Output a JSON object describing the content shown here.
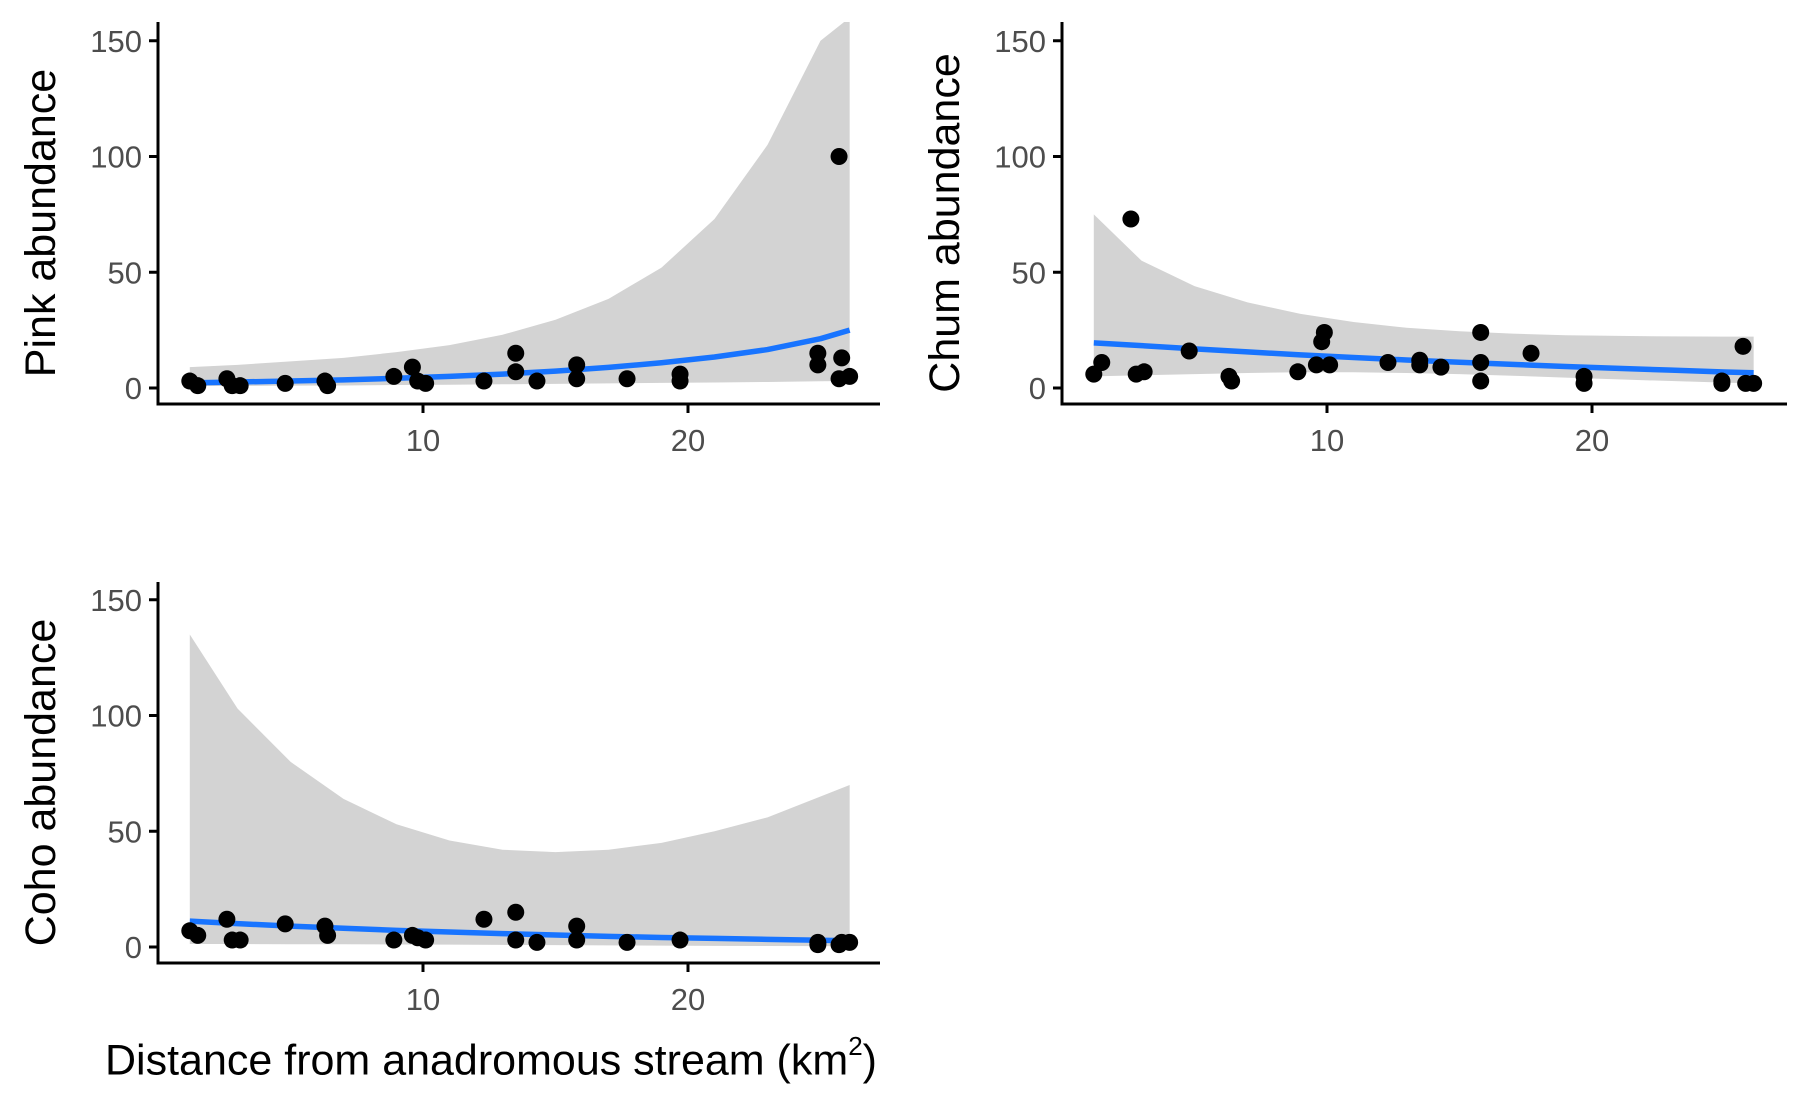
{
  "x_axis_title": {
    "text": "Distance from anadromous stream (km",
    "superscript": "2",
    "suffix": ")"
  },
  "colors": {
    "fit_line": "#1874FF",
    "confidence_band": "#D3D3D3",
    "points": "#000000",
    "axes": "#000000",
    "tick_labels": "#4D4D4D"
  },
  "chart_data": [
    {
      "type": "scatter",
      "panel": "top-left",
      "ylabel": "Pink abundance",
      "xlabel": "",
      "xlim": [
        0.3,
        27.2
      ],
      "ylim": [
        -5,
        157
      ],
      "x_ticks": [
        10,
        20
      ],
      "y_ticks": [
        0,
        50,
        100,
        150
      ],
      "grid": false,
      "legend": "none",
      "points": [
        [
          1.2,
          3
        ],
        [
          1.5,
          1
        ],
        [
          2.6,
          4
        ],
        [
          2.8,
          1
        ],
        [
          3.1,
          1
        ],
        [
          4.8,
          2
        ],
        [
          6.3,
          3
        ],
        [
          6.4,
          1
        ],
        [
          8.9,
          5
        ],
        [
          9.6,
          9
        ],
        [
          9.8,
          3
        ],
        [
          10.1,
          2
        ],
        [
          12.3,
          3
        ],
        [
          13.5,
          15
        ],
        [
          13.5,
          7
        ],
        [
          14.3,
          3
        ],
        [
          15.8,
          4
        ],
        [
          15.8,
          10
        ],
        [
          17.7,
          4
        ],
        [
          19.7,
          3
        ],
        [
          19.7,
          6
        ],
        [
          24.9,
          15
        ],
        [
          24.9,
          10
        ],
        [
          25.7,
          100
        ],
        [
          25.7,
          4
        ],
        [
          25.8,
          13
        ],
        [
          26.1,
          5
        ]
      ],
      "fit": {
        "x": [
          1.2,
          3,
          5,
          7,
          9,
          11,
          13,
          15,
          17,
          19,
          21,
          23,
          25,
          26.1
        ],
        "y": [
          2.2,
          2.6,
          3.0,
          3.5,
          4.2,
          5.0,
          6.0,
          7.3,
          8.9,
          10.9,
          13.4,
          16.6,
          21.3,
          25.0
        ]
      },
      "band": {
        "x": [
          1.2,
          3,
          5,
          7,
          9,
          11,
          13,
          15,
          17,
          19,
          21,
          23,
          25,
          26.1
        ],
        "upper": [
          9,
          10,
          11.5,
          13,
          15.5,
          18.5,
          23,
          29.5,
          38.5,
          52,
          73,
          105,
          150,
          160
        ],
        "lower": [
          0.8,
          0.9,
          1.0,
          1.1,
          1.3,
          1.4,
          1.6,
          1.8,
          2.0,
          2.2,
          2.4,
          2.6,
          2.9,
          3.0
        ]
      }
    },
    {
      "type": "scatter",
      "panel": "top-right",
      "ylabel": "Chum abundance",
      "xlabel": "",
      "xlim": [
        0.3,
        27.2
      ],
      "ylim": [
        -5,
        157
      ],
      "x_ticks": [
        10,
        20
      ],
      "y_ticks": [
        0,
        50,
        100,
        150
      ],
      "grid": false,
      "legend": "none",
      "points": [
        [
          1.2,
          6
        ],
        [
          1.5,
          11
        ],
        [
          2.6,
          73
        ],
        [
          2.8,
          6
        ],
        [
          3.1,
          7
        ],
        [
          4.8,
          16
        ],
        [
          6.3,
          5
        ],
        [
          6.4,
          3
        ],
        [
          8.9,
          7
        ],
        [
          9.6,
          10
        ],
        [
          9.8,
          20
        ],
        [
          9.9,
          24
        ],
        [
          10.1,
          10
        ],
        [
          12.3,
          11
        ],
        [
          13.5,
          12
        ],
        [
          13.5,
          10
        ],
        [
          14.3,
          9
        ],
        [
          15.8,
          24
        ],
        [
          15.8,
          11
        ],
        [
          15.8,
          3
        ],
        [
          17.7,
          15
        ],
        [
          19.7,
          2
        ],
        [
          19.7,
          5
        ],
        [
          24.9,
          2
        ],
        [
          24.9,
          3
        ],
        [
          25.7,
          18
        ],
        [
          25.8,
          2
        ],
        [
          26.1,
          2
        ]
      ],
      "fit": {
        "x": [
          1.2,
          3,
          5,
          7,
          9,
          11,
          13,
          15,
          17,
          19,
          21,
          23,
          25,
          26.1
        ],
        "y": [
          19.5,
          18.3,
          16.9,
          15.6,
          14.3,
          13.2,
          12.1,
          11.1,
          10.2,
          9.3,
          8.5,
          7.7,
          6.9,
          6.6
        ]
      },
      "band": {
        "x": [
          1.2,
          3,
          5,
          7,
          9,
          11,
          13,
          15,
          17,
          19,
          21,
          23,
          25,
          26.1
        ],
        "upper": [
          75,
          55,
          44,
          37,
          32,
          28.5,
          26,
          24.5,
          23.5,
          22.8,
          22.5,
          22.3,
          22.2,
          22.2
        ],
        "lower": [
          5,
          5.5,
          6,
          6.5,
          6.8,
          6.8,
          6.5,
          6,
          5.3,
          4.5,
          3.7,
          3,
          2.3,
          2
        ]
      }
    },
    {
      "type": "scatter",
      "panel": "bottom-left",
      "ylabel": "Coho abundance",
      "xlabel": "Distance from anadromous stream (km2)",
      "xlim": [
        0.3,
        27.2
      ],
      "ylim": [
        -5,
        157
      ],
      "x_ticks": [
        10,
        20
      ],
      "y_ticks": [
        0,
        50,
        100,
        150
      ],
      "grid": false,
      "legend": "none",
      "points": [
        [
          1.2,
          7
        ],
        [
          1.5,
          5
        ],
        [
          2.6,
          12
        ],
        [
          2.8,
          3
        ],
        [
          3.1,
          3
        ],
        [
          4.8,
          10
        ],
        [
          6.3,
          9
        ],
        [
          6.4,
          5
        ],
        [
          8.9,
          3
        ],
        [
          9.6,
          5
        ],
        [
          9.8,
          4
        ],
        [
          10.1,
          3
        ],
        [
          12.3,
          12
        ],
        [
          13.5,
          15
        ],
        [
          13.5,
          3
        ],
        [
          14.3,
          2
        ],
        [
          15.8,
          9
        ],
        [
          15.8,
          3
        ],
        [
          17.7,
          2
        ],
        [
          19.7,
          3
        ],
        [
          24.9,
          2
        ],
        [
          24.9,
          1
        ],
        [
          25.7,
          1
        ],
        [
          25.8,
          2
        ],
        [
          26.1,
          2
        ]
      ],
      "fit": {
        "x": [
          1.2,
          3,
          5,
          7,
          9,
          11,
          13,
          15,
          17,
          19,
          21,
          23,
          25,
          26.1
        ],
        "y": [
          11.2,
          10.1,
          9.0,
          8.1,
          7.2,
          6.5,
          5.8,
          5.2,
          4.6,
          4.1,
          3.7,
          3.3,
          2.9,
          2.7
        ]
      },
      "band": {
        "x": [
          1.2,
          3,
          5,
          7,
          9,
          11,
          13,
          15,
          17,
          19,
          21,
          23,
          25,
          26.1
        ],
        "upper": [
          135,
          103,
          80,
          64,
          53,
          46,
          42,
          41,
          42,
          45,
          50,
          56,
          65,
          70
        ],
        "lower": [
          1.3,
          1.3,
          1.2,
          1.2,
          1.1,
          1.0,
          0.9,
          0.8,
          0.7,
          0.6,
          0.5,
          0.45,
          0.4,
          0.35
        ]
      }
    }
  ]
}
